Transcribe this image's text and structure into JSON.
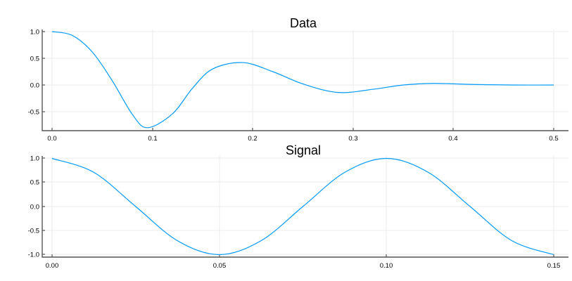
{
  "colors": {
    "line": "#009AF9",
    "axis": "#555555",
    "grid": "#EBEBEB"
  },
  "chart_data": [
    {
      "type": "line",
      "title": "Data",
      "xlabel": "",
      "ylabel": "",
      "xlim": [
        0.0,
        0.5
      ],
      "ylim": [
        -0.86,
        1.0
      ],
      "xticks": [
        "0.0",
        "0.1",
        "0.2",
        "0.3",
        "0.4",
        "0.5"
      ],
      "yticks": [
        "1.0",
        "0.5",
        "0.0",
        "-0.5"
      ],
      "grid": true,
      "legend": false,
      "series": [
        {
          "name": "y1",
          "x": [
            0.0,
            0.02,
            0.04,
            0.06,
            0.08,
            0.095,
            0.12,
            0.14,
            0.16,
            0.19,
            0.22,
            0.25,
            0.285,
            0.32,
            0.35,
            0.38,
            0.42,
            0.46,
            0.5
          ],
          "values": [
            1.0,
            0.93,
            0.62,
            0.08,
            -0.55,
            -0.8,
            -0.54,
            -0.06,
            0.3,
            0.42,
            0.25,
            0.02,
            -0.14,
            -0.08,
            0.0,
            0.03,
            0.01,
            0.0,
            0.0
          ]
        }
      ]
    },
    {
      "type": "line",
      "title": "Signal",
      "xlabel": "",
      "ylabel": "",
      "xlim": [
        0.0,
        0.15
      ],
      "ylim": [
        -1.0,
        1.0
      ],
      "xticks": [
        "0.00",
        "0.05",
        "0.10",
        "0.15"
      ],
      "yticks": [
        "1.0",
        "0.5",
        "0.0",
        "-0.5",
        "-1.0"
      ],
      "grid": true,
      "legend": false,
      "series": [
        {
          "name": "y1",
          "x": [
            0.0,
            0.0125,
            0.025,
            0.0375,
            0.05,
            0.0625,
            0.075,
            0.0875,
            0.1,
            0.1125,
            0.125,
            0.1375,
            0.15
          ],
          "values": [
            1.0,
            0.71,
            0.0,
            -0.71,
            -1.0,
            -0.71,
            0.0,
            0.71,
            1.0,
            0.71,
            0.0,
            -0.71,
            -1.0
          ]
        }
      ]
    }
  ]
}
